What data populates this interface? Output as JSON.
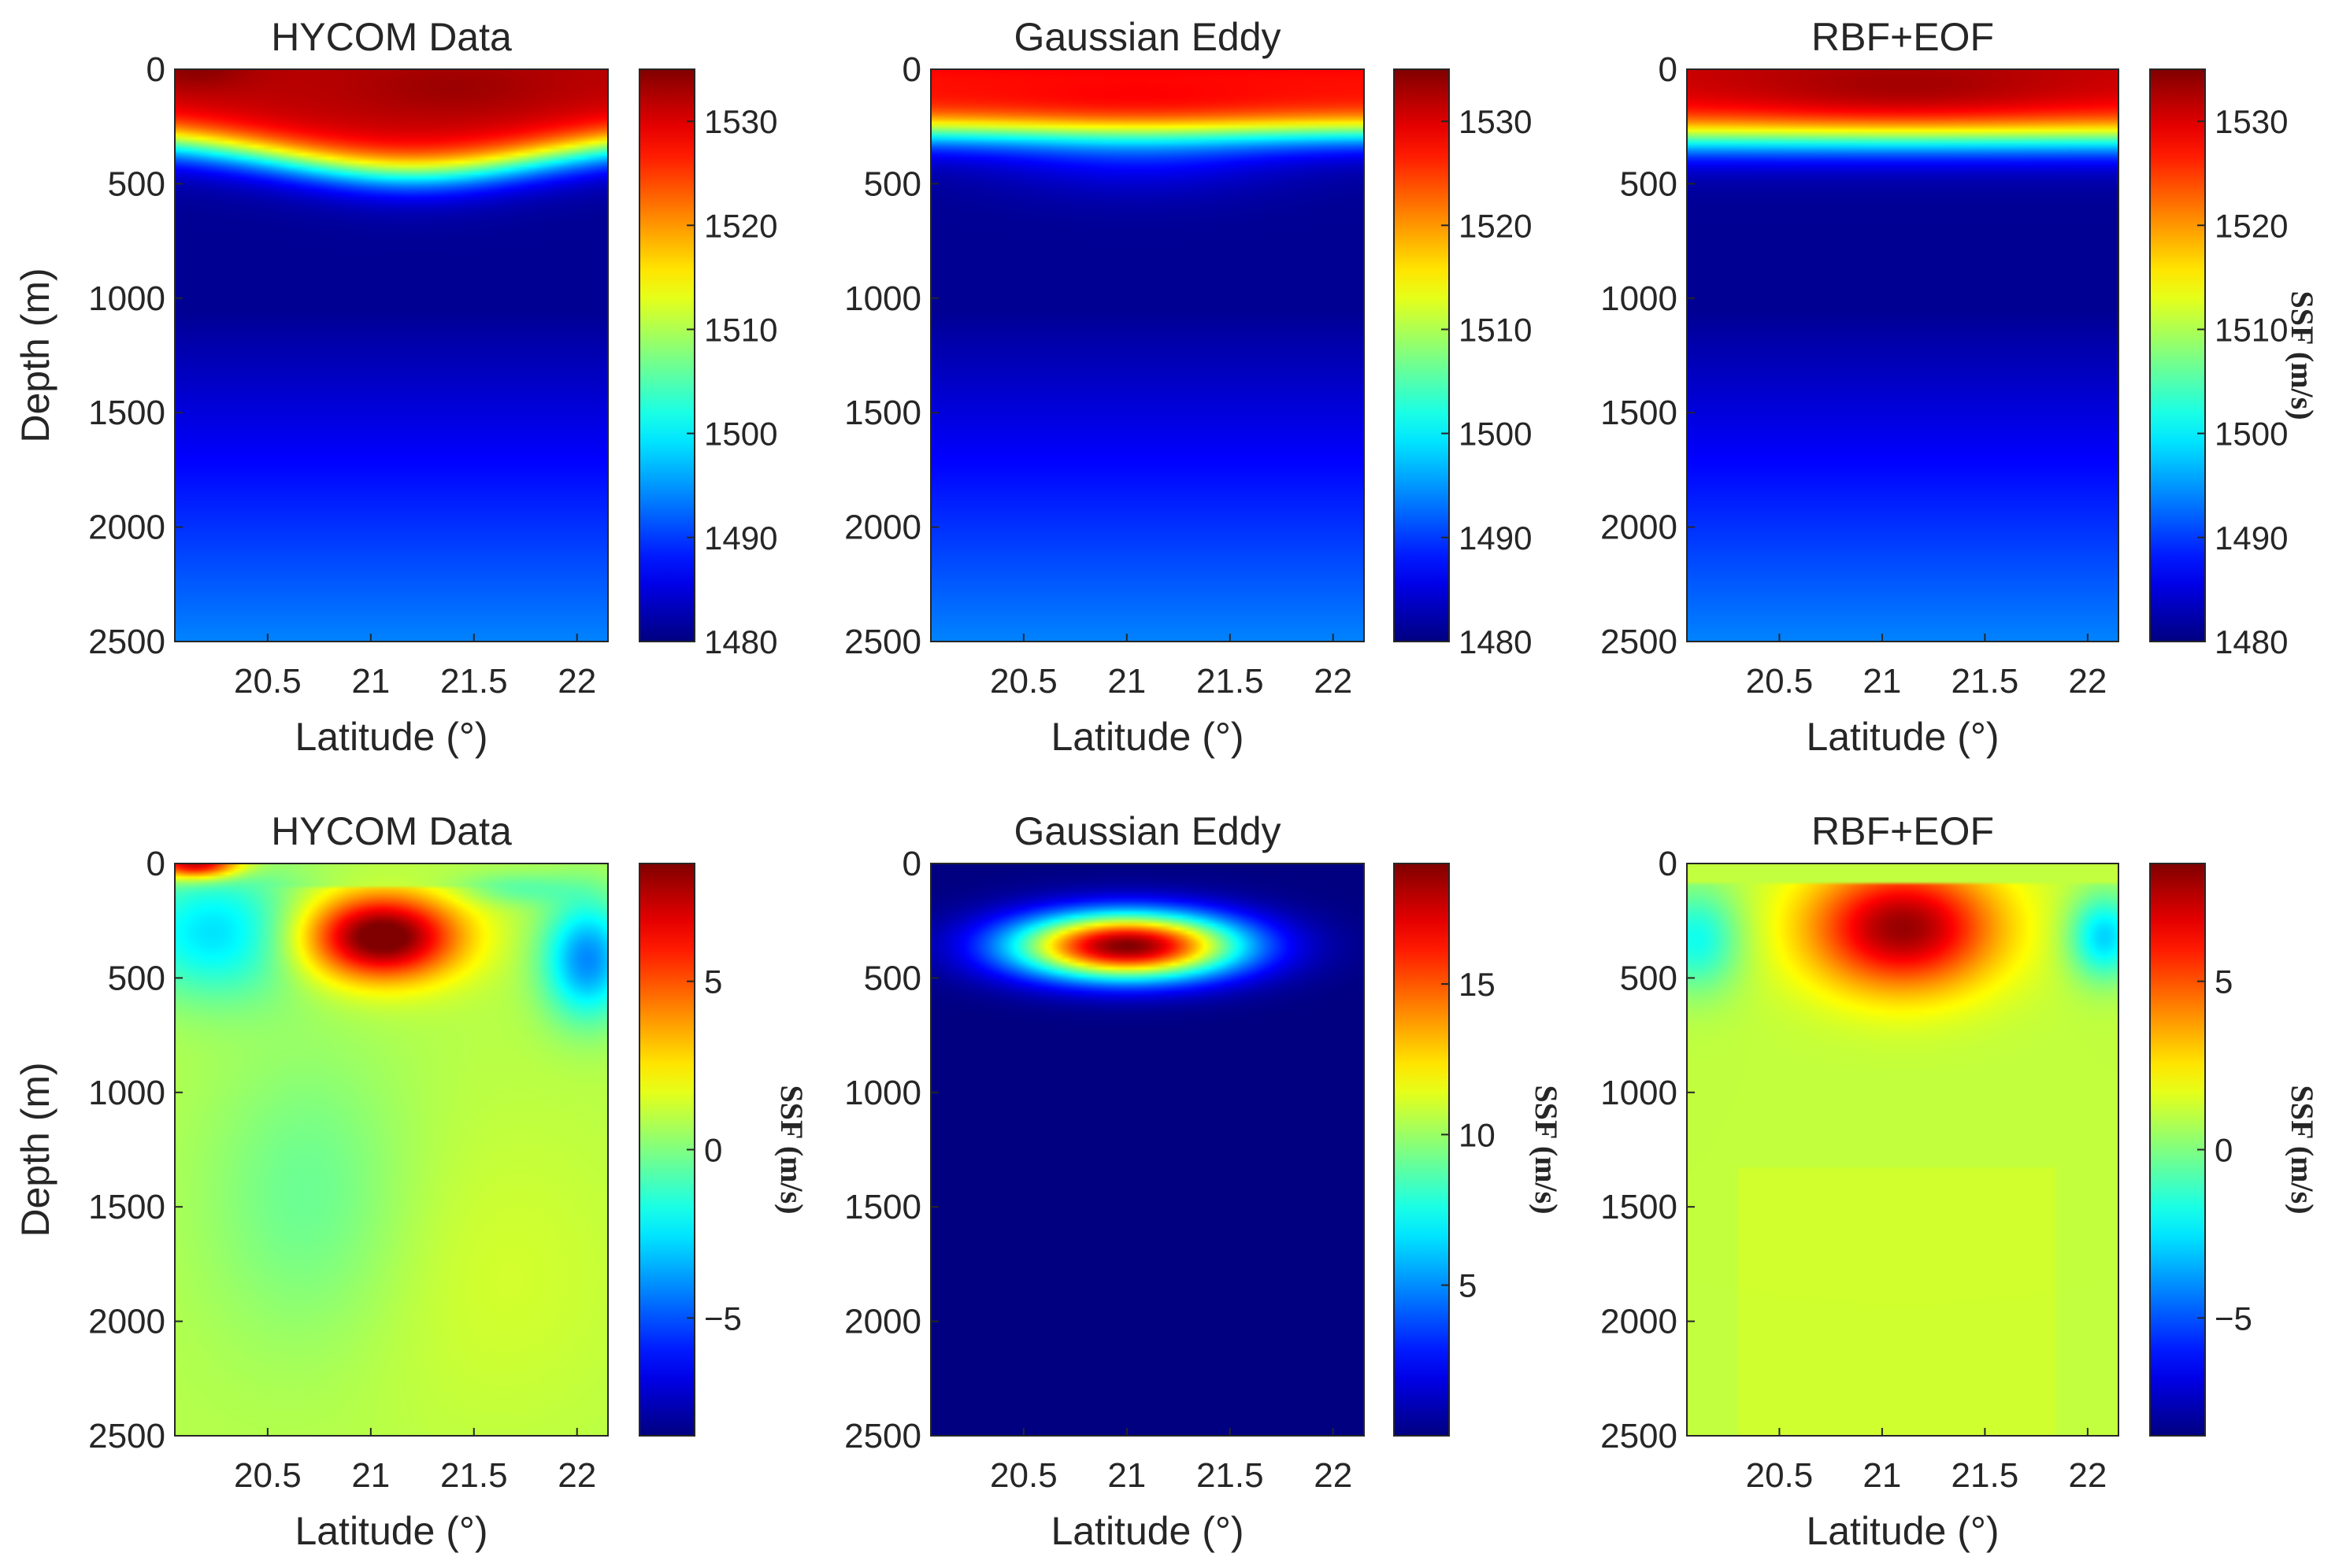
{
  "chart_data": [
    {
      "type": "heatmap",
      "title": "HYCOM Data",
      "xlabel": "Latitude (°)",
      "ylabel": "Depth (m)",
      "xlim": [
        20.05,
        22.15
      ],
      "ylim": [
        0,
        2500
      ],
      "x_ticks": [
        "20.5",
        "21",
        "21.5",
        "22"
      ],
      "y_ticks": [
        "0",
        "500",
        "1000",
        "1500",
        "2000",
        "2500"
      ],
      "colorbar": {
        "range": [
          1480,
          1535
        ],
        "ticks": [
          "1480",
          "1490",
          "1500",
          "1510",
          "1520",
          "1530"
        ],
        "label": ""
      },
      "field": "ssp_hycom"
    },
    {
      "type": "heatmap",
      "title": "Gaussian Eddy",
      "xlabel": "Latitude (°)",
      "ylabel": "",
      "xlim": [
        20.05,
        22.15
      ],
      "ylim": [
        0,
        2500
      ],
      "x_ticks": [
        "20.5",
        "21",
        "21.5",
        "22"
      ],
      "y_ticks": [
        "0",
        "500",
        "1000",
        "1500",
        "2000",
        "2500"
      ],
      "colorbar": {
        "range": [
          1480,
          1535
        ],
        "ticks": [
          "1480",
          "1490",
          "1500",
          "1510",
          "1520",
          "1530"
        ],
        "label": ""
      },
      "field": "ssp_gauss"
    },
    {
      "type": "heatmap",
      "title": "RBF+EOF",
      "xlabel": "Latitude (°)",
      "ylabel": "",
      "xlim": [
        20.05,
        22.15
      ],
      "ylim": [
        0,
        2500
      ],
      "x_ticks": [
        "20.5",
        "21",
        "21.5",
        "22"
      ],
      "y_ticks": [
        "0",
        "500",
        "1000",
        "1500",
        "2000",
        "2500"
      ],
      "colorbar": {
        "range": [
          1480,
          1535
        ],
        "ticks": [
          "1480",
          "1490",
          "1500",
          "1510",
          "1520",
          "1530"
        ],
        "label": "SSF (m/s)"
      },
      "field": "ssp_rbf"
    },
    {
      "type": "heatmap",
      "title": "HYCOM Data",
      "xlabel": "Latitude (°)",
      "ylabel": "Depth (m)",
      "xlim": [
        20.05,
        22.15
      ],
      "ylim": [
        0,
        2500
      ],
      "x_ticks": [
        "20.5",
        "21",
        "21.5",
        "22"
      ],
      "y_ticks": [
        "0",
        "500",
        "1000",
        "1500",
        "2000",
        "2500"
      ],
      "colorbar": {
        "range": [
          -8.5,
          8.5
        ],
        "ticks": [
          "−5",
          "0",
          "5"
        ],
        "tick_values": [
          -5,
          0,
          5
        ],
        "label": "SSF (m/s)"
      },
      "field": "ssf_hycom"
    },
    {
      "type": "heatmap",
      "title": "Gaussian Eddy",
      "xlabel": "Latitude (°)",
      "ylabel": "",
      "xlim": [
        20.05,
        22.15
      ],
      "ylim": [
        0,
        2500
      ],
      "x_ticks": [
        "20.5",
        "21",
        "21.5",
        "22"
      ],
      "y_ticks": [
        "0",
        "500",
        "1000",
        "1500",
        "2000",
        "2500"
      ],
      "colorbar": {
        "range": [
          0,
          19
        ],
        "ticks": [
          "5",
          "10",
          "15"
        ],
        "tick_values": [
          5,
          10,
          15
        ],
        "label": "SSF (m/s)"
      },
      "field": "ssf_gauss"
    },
    {
      "type": "heatmap",
      "title": "RBF+EOF",
      "xlabel": "Latitude (°)",
      "ylabel": "",
      "xlim": [
        20.05,
        22.15
      ],
      "ylim": [
        0,
        2500
      ],
      "x_ticks": [
        "20.5",
        "21",
        "21.5",
        "22"
      ],
      "y_ticks": [
        "0",
        "500",
        "1000",
        "1500",
        "2000",
        "2500"
      ],
      "colorbar": {
        "range": [
          -8.5,
          8.5
        ],
        "ticks": [
          "−5",
          "0",
          "5"
        ],
        "tick_values": [
          -5,
          0,
          5
        ],
        "label": "SSF (m/s)"
      },
      "field": "ssf_rbf"
    }
  ],
  "colormap": "jet",
  "axis_color": "#262626"
}
